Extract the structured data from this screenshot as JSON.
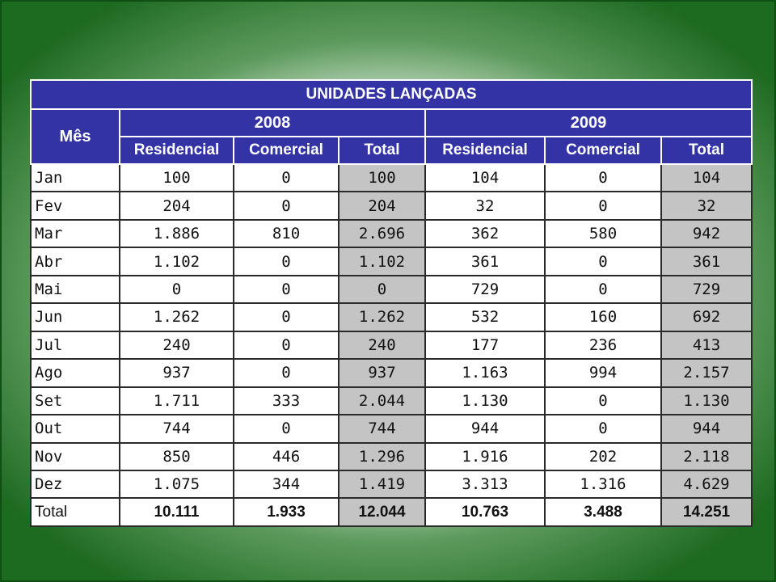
{
  "table": {
    "title": "UNIDADES LANÇADAS",
    "month_header": "Mês",
    "years": [
      "2008",
      "2009"
    ],
    "sub_headers": [
      "Residencial",
      "Comercial",
      "Total",
      "Residencial",
      "Comercial",
      "Total"
    ],
    "rows": [
      [
        "Jan",
        "100",
        "0",
        "100",
        "104",
        "0",
        "104"
      ],
      [
        "Fev",
        "204",
        "0",
        "204",
        "32",
        "0",
        "32"
      ],
      [
        "Mar",
        "1.886",
        "810",
        "2.696",
        "362",
        "580",
        "942"
      ],
      [
        "Abr",
        "1.102",
        "0",
        "1.102",
        "361",
        "0",
        "361"
      ],
      [
        "Mai",
        "0",
        "0",
        "0",
        "729",
        "0",
        "729"
      ],
      [
        "Jun",
        "1.262",
        "0",
        "1.262",
        "532",
        "160",
        "692"
      ],
      [
        "Jul",
        "240",
        "0",
        "240",
        "177",
        "236",
        "413"
      ],
      [
        "Ago",
        "937",
        "0",
        "937",
        "1.163",
        "994",
        "2.157"
      ],
      [
        "Set",
        "1.711",
        "333",
        "2.044",
        "1.130",
        "0",
        "1.130"
      ],
      [
        "Out",
        "744",
        "0",
        "744",
        "944",
        "0",
        "944"
      ],
      [
        "Nov",
        "850",
        "446",
        "1.296",
        "1.916",
        "202",
        "2.118"
      ],
      [
        "Dez",
        "1.075",
        "344",
        "1.419",
        "3.313",
        "1.316",
        "4.629"
      ]
    ],
    "total_row": [
      "Total",
      "10.111",
      "1.933",
      "12.044",
      "10.763",
      "3.488",
      "14.251"
    ]
  },
  "colors": {
    "header_bg": "#3333a6",
    "total_column_bg": "#c4c4c4",
    "border_green": "#1d6a21"
  }
}
